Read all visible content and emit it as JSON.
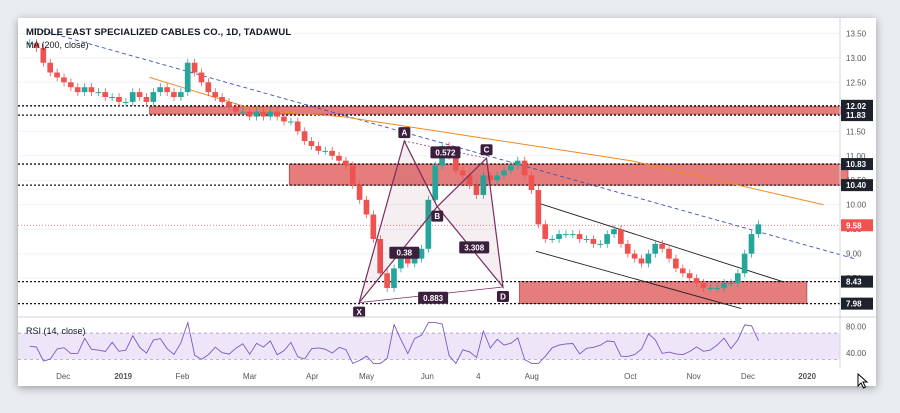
{
  "header": {
    "title": "MIDDLE EAST SPECIALIZED CABLES CO., 1D, TADAWUL",
    "indicator": "MA (200, close)"
  },
  "rsi": {
    "label": "RSI (14, close)"
  },
  "cursor": {
    "icon": "mouse-pointer-icon"
  },
  "chart_data": {
    "type": "candlestick",
    "price_axis": {
      "ticks": [
        13.5,
        13.0,
        12.5,
        12.0,
        11.5,
        11.0,
        10.5,
        10.0,
        9.5,
        9.0,
        8.5,
        8.0
      ],
      "range": [
        7.85,
        13.65
      ]
    },
    "time_axis": {
      "labels": [
        "Dec",
        "2019",
        "Feb",
        "Mar",
        "Apr",
        "May",
        "Jun",
        "4",
        "Aug",
        "Oct",
        "Nov",
        "Dec",
        "2020"
      ]
    },
    "price_labels": [
      {
        "value": "12.02",
        "price": 12.02,
        "style": "dark"
      },
      {
        "value": "11.83",
        "price": 11.83,
        "style": "dark"
      },
      {
        "value": "10.83",
        "price": 10.83,
        "style": "dark"
      },
      {
        "value": "10.40",
        "price": 10.4,
        "style": "dark"
      },
      {
        "value": "9.58",
        "price": 9.58,
        "style": "red"
      },
      {
        "value": "8.43",
        "price": 8.43,
        "style": "dark"
      },
      {
        "value": "7.98",
        "price": 7.98,
        "style": "dark"
      }
    ],
    "zones": [
      {
        "from": 11.85,
        "to": 12.0,
        "t0": 0.16,
        "t1": 1.0
      },
      {
        "from": 10.4,
        "to": 10.83,
        "t0": 0.33,
        "t1": 1.0
      },
      {
        "from": 7.98,
        "to": 8.43,
        "t0": 0.61,
        "t1": 0.95
      }
    ],
    "pattern_points": [
      {
        "label": "X",
        "t": 0.415,
        "price": 8.0
      },
      {
        "label": "A",
        "t": 0.47,
        "price": 11.3
      },
      {
        "label": "B",
        "t": 0.51,
        "price": 9.96
      },
      {
        "label": "C",
        "t": 0.57,
        "price": 10.95
      },
      {
        "label": "D",
        "t": 0.59,
        "price": 8.32
      }
    ],
    "ratios": [
      {
        "value": "0.572",
        "t": 0.52,
        "price": 11.07
      },
      {
        "value": "0.38",
        "t": 0.47,
        "price": 9.02
      },
      {
        "value": "3.308",
        "t": 0.555,
        "price": 9.13
      },
      {
        "value": "0.883",
        "t": 0.505,
        "price": 8.1
      }
    ],
    "candles_close": [
      13.3,
      13.2,
      12.9,
      12.7,
      12.6,
      12.5,
      12.4,
      12.3,
      12.4,
      12.3,
      12.3,
      12.2,
      12.2,
      12.1,
      12.1,
      12.3,
      12.2,
      12.1,
      12.3,
      12.4,
      12.3,
      12.2,
      12.3,
      12.9,
      12.7,
      12.5,
      12.3,
      12.2,
      12.1,
      12.0,
      11.9,
      11.9,
      11.8,
      11.9,
      11.8,
      11.9,
      11.8,
      11.7,
      11.7,
      11.5,
      11.3,
      11.2,
      11.1,
      11.1,
      11.0,
      10.9,
      10.8,
      10.4,
      10.1,
      9.8,
      9.3,
      8.6,
      8.3,
      8.7,
      8.9,
      8.8,
      8.9,
      9.1,
      10.1,
      10.8,
      11.2,
      11.0,
      10.7,
      10.6,
      10.4,
      10.2,
      10.6,
      10.5,
      10.6,
      10.7,
      10.8,
      10.9,
      10.6,
      10.3,
      9.6,
      9.3,
      9.3,
      9.4,
      9.4,
      9.4,
      9.3,
      9.3,
      9.2,
      9.2,
      9.4,
      9.5,
      9.2,
      9.0,
      8.9,
      8.8,
      9.0,
      9.2,
      9.1,
      8.9,
      8.7,
      8.6,
      8.5,
      8.4,
      8.3,
      8.3,
      8.3,
      8.4,
      8.4,
      8.6,
      9.0,
      9.4,
      9.6
    ],
    "ma200": [
      12.6,
      12.4,
      12.2,
      12.0,
      11.9,
      11.85,
      11.8,
      11.7,
      11.6,
      11.5,
      11.4,
      11.3,
      11.2,
      11.1,
      11.0,
      10.9,
      10.75,
      10.6,
      10.45,
      10.3,
      10.15,
      10.0
    ],
    "rsi": {
      "ticks": [
        80.0,
        40.0
      ],
      "band": [
        30,
        70
      ]
    }
  },
  "colors": {
    "up": "#26a69a",
    "down": "#ef5350",
    "zone_fill": "#e06666",
    "pattern": "#7b2d5e",
    "ma": "#f08a24",
    "trend": "#3f51b5",
    "rsi": "#7e57c2"
  }
}
